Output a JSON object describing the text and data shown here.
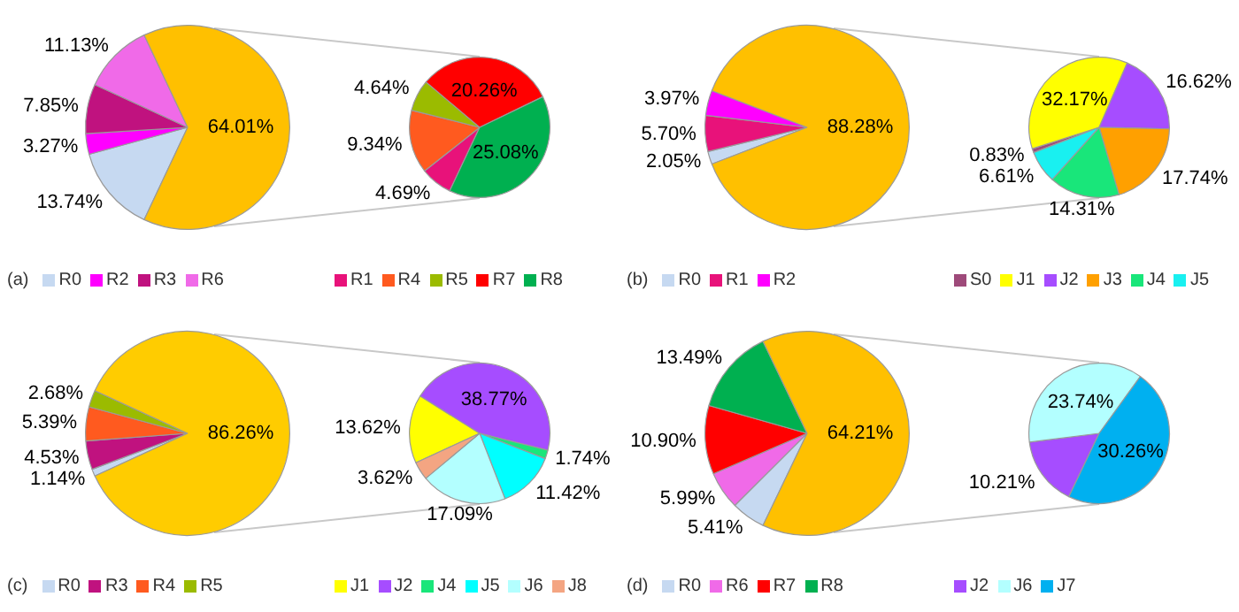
{
  "chart_data": [
    {
      "type": "pie",
      "categories": [
        "R0",
        "R2",
        "R3",
        "R6",
        null
      ],
      "values": [
        13.74,
        3.27,
        7.85,
        11.13,
        64.01
      ],
      "colors": [
        "#c6d9f1",
        "#ff00ff",
        "#c0127f",
        "#f06ae8",
        "#ffc000"
      ],
      "value_labels": [
        "13.74%",
        "3.27%",
        "7.85%",
        "11.13%",
        "64.01%"
      ],
      "legend": "bottom",
      "annotations": [
        "(a)"
      ]
    },
    {
      "type": "pie",
      "categories": [
        "R1",
        "R4",
        "R5",
        "R7",
        "R8"
      ],
      "values": [
        4.69,
        9.34,
        4.64,
        20.26,
        25.08
      ],
      "colors": [
        "#e8127a",
        "#ff5a1f",
        "#9bbb00",
        "#ff0000",
        "#00b050"
      ],
      "value_labels": [
        "4.69%",
        "9.34%",
        "4.64%",
        "20.26%",
        "25.08%"
      ],
      "legend": "bottom"
    },
    {
      "type": "pie",
      "categories": [
        "R0",
        "R1",
        "R2",
        null
      ],
      "values": [
        2.05,
        5.7,
        3.97,
        88.28
      ],
      "colors": [
        "#c6d9f1",
        "#e8127a",
        "#ff00ff",
        "#ffc000"
      ],
      "value_labels": [
        "2.05%",
        "5.70%",
        "3.97%",
        "88.28%"
      ],
      "legend": "bottom",
      "annotations": [
        "(b)"
      ]
    },
    {
      "type": "pie",
      "categories": [
        "S0",
        "J1",
        "J2",
        "J3",
        "J4",
        "J5"
      ],
      "values": [
        0.83,
        32.17,
        16.62,
        17.74,
        14.31,
        6.61
      ],
      "colors": [
        "#9e4a7a",
        "#ffff00",
        "#a64dff",
        "#ffa000",
        "#19e67a",
        "#19f0f0"
      ],
      "value_labels": [
        "0.83%",
        "32.17%",
        "16.62%",
        "17.74%",
        "14.31%",
        "6.61%"
      ],
      "legend": "bottom"
    },
    {
      "type": "pie",
      "categories": [
        "R0",
        "R3",
        "R4",
        "R5",
        null
      ],
      "values": [
        1.14,
        4.53,
        5.39,
        2.68,
        86.26
      ],
      "colors": [
        "#c6d9f1",
        "#c0127f",
        "#ff5a1f",
        "#9bbb00",
        "#ffcc00"
      ],
      "value_labels": [
        "1.14%",
        "4.53%",
        "5.39%",
        "2.68%",
        "86.26%"
      ],
      "legend": "bottom",
      "annotations": [
        "(c)"
      ]
    },
    {
      "type": "pie",
      "categories": [
        "J1",
        "J2",
        "J4",
        "J5",
        "J6",
        "J8"
      ],
      "values": [
        13.62,
        38.77,
        1.74,
        11.42,
        17.09,
        3.62
      ],
      "colors": [
        "#ffff00",
        "#a64dff",
        "#19e67a",
        "#00ffff",
        "#b3ffff",
        "#f4a582"
      ],
      "value_labels": [
        "13.62%",
        "38.77%",
        "1.74%",
        "11.42%",
        "17.09%",
        "3.62%"
      ],
      "legend": "bottom"
    },
    {
      "type": "pie",
      "categories": [
        "R0",
        "R6",
        "R7",
        "R8",
        null
      ],
      "values": [
        5.41,
        5.99,
        10.9,
        13.49,
        64.21
      ],
      "colors": [
        "#c6d9f1",
        "#f06ae8",
        "#ff0000",
        "#00b050",
        "#ffc000"
      ],
      "value_labels": [
        "5.41%",
        "5.99%",
        "10.90%",
        "13.49%",
        "64.21%"
      ],
      "legend": "bottom",
      "annotations": [
        "(d)"
      ]
    },
    {
      "type": "pie",
      "categories": [
        "J2",
        "J6",
        "J7"
      ],
      "values": [
        10.21,
        23.74,
        30.26
      ],
      "colors": [
        "#a64dff",
        "#b3ffff",
        "#00b0f0"
      ],
      "value_labels": [
        "10.21%",
        "23.74%",
        "30.26%"
      ],
      "legend": "bottom"
    }
  ]
}
